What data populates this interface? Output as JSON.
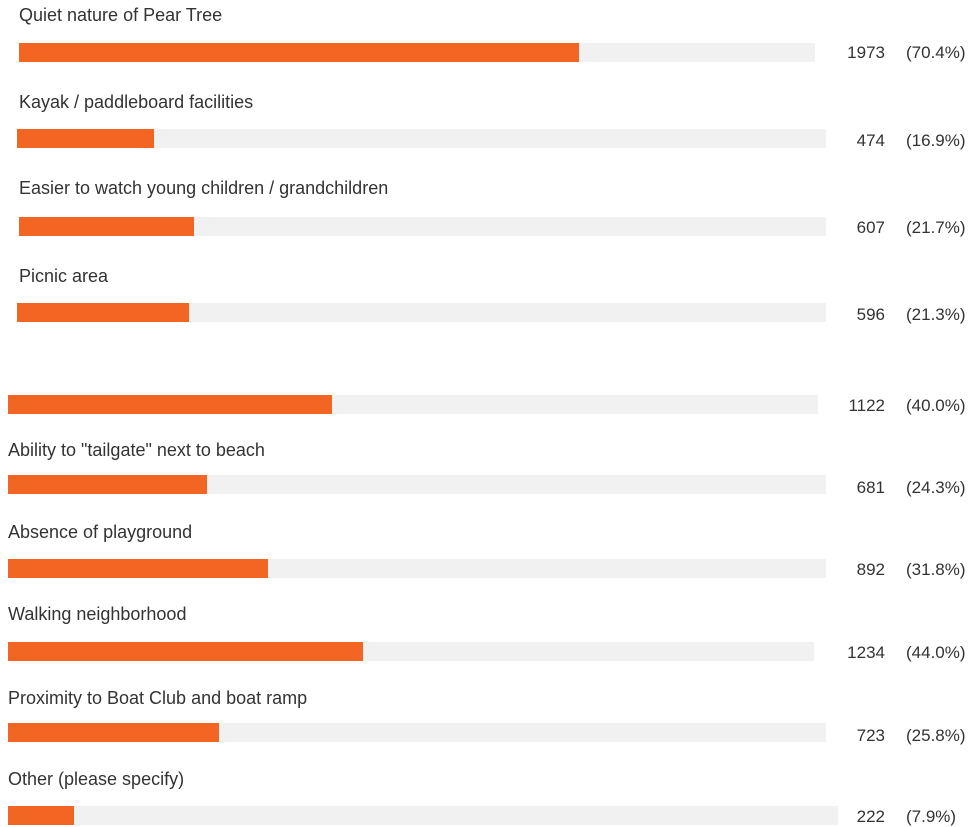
{
  "chart_data": {
    "type": "bar",
    "orientation": "horizontal",
    "max": 100,
    "colors": {
      "bar": "#f26522",
      "track": "#f1f1f1"
    },
    "categories": [
      "Quiet nature of Pear Tree",
      "Kayak / paddleboard facilities",
      "Easier to watch young children / grandchildren",
      "Picnic area",
      "",
      "Ability to \"tailgate\" next to beach",
      "Absence of playground",
      "Walking neighborhood",
      "Proximity to Boat Club and boat ramp",
      "Other (please specify)"
    ],
    "counts": [
      1973,
      474,
      607,
      596,
      1122,
      681,
      892,
      1234,
      723,
      222
    ],
    "percents": [
      70.4,
      16.9,
      21.7,
      21.3,
      40.0,
      24.3,
      31.8,
      44.0,
      25.8,
      7.9
    ],
    "count_labels": [
      "1973",
      "474",
      "607",
      "596",
      "1122",
      "681",
      "892",
      "1234",
      "723",
      "222"
    ],
    "percent_labels": [
      "(70.4%)",
      "(16.9%)",
      "(21.7%)",
      "(21.3%)",
      "(40.0%)",
      "(24.3%)",
      "(31.8%)",
      "(44.0%)",
      "(25.8%)",
      "(7.9%)"
    ]
  }
}
